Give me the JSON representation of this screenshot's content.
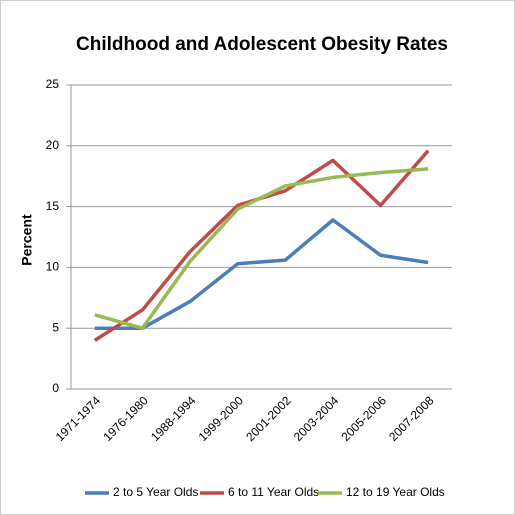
{
  "chart_data": {
    "type": "line",
    "title": "Childhood and Adolescent Obesity Rates",
    "y_label": "Percent",
    "categories": [
      "1971-1974",
      "1976-1980",
      "1988-1994",
      "1999-2000",
      "2001-2002",
      "2003-2004",
      "2005-2006",
      "2007-2008"
    ],
    "series": [
      {
        "name": "2 to 5 Year Olds",
        "color": "#4a7ebb",
        "values": [
          5,
          5,
          7.2,
          10.3,
          10.6,
          13.9,
          11,
          10.4
        ]
      },
      {
        "name": "6 to 11 Year Olds",
        "color": "#be4b48",
        "values": [
          4,
          6.5,
          11.3,
          15.1,
          16.3,
          18.8,
          15.1,
          19.6
        ]
      },
      {
        "name": "12 to 19 Year Olds",
        "color": "#98b954",
        "values": [
          6.1,
          5,
          10.5,
          14.8,
          16.7,
          17.4,
          17.8,
          18.1
        ]
      }
    ],
    "ylim": [
      0,
      25
    ],
    "yticks": [
      0,
      5,
      10,
      15,
      20,
      25
    ],
    "grid": true
  }
}
